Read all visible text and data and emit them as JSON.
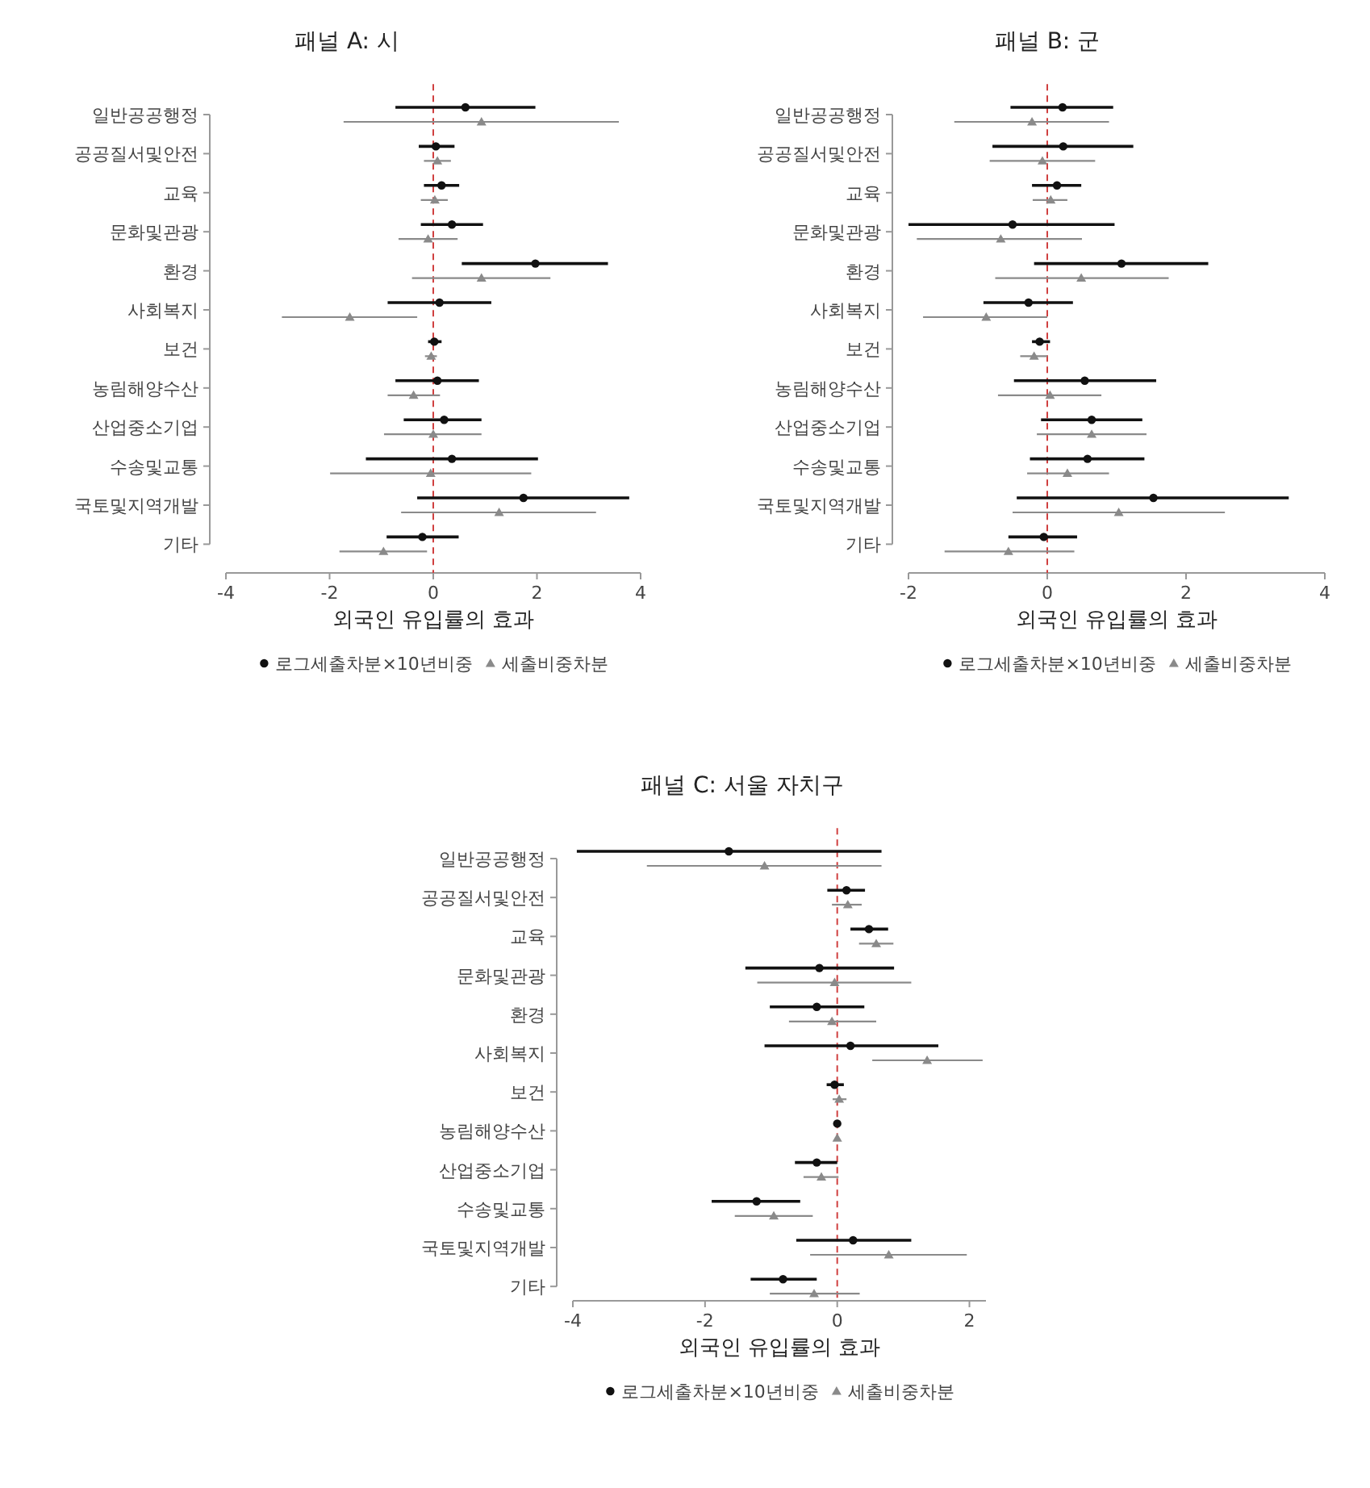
{
  "chart_data": [
    {
      "type": "scatter",
      "title": "패널 A: 시",
      "xlabel": "외국인 유입률의 효과",
      "orientation": "horizontal",
      "categories": [
        "일반공공행정",
        "공공질서및안전",
        "교육",
        "문화및관광",
        "환경",
        "사회복지",
        "보건",
        "농림해양수산",
        "산업중소기업",
        "수송및교통",
        "국토및지역개발",
        "기타"
      ],
      "xlim": [
        -4,
        4
      ],
      "xticks": [
        -4,
        -2,
        0,
        2,
        4
      ],
      "legend": "bottom",
      "ref_lines": [
        {
          "axis": "x",
          "value": 0,
          "color": "#d04040",
          "line_style": "dashed"
        }
      ],
      "series": [
        {
          "name": "로그세출차분×10년비중",
          "color": "#111111",
          "marker": "circle",
          "values": [
            0.62,
            0.05,
            0.16,
            0.36,
            1.97,
            0.12,
            0.02,
            0.08,
            0.21,
            0.36,
            1.74,
            -0.21
          ],
          "errors": [
            [
              -0.73,
              1.97
            ],
            [
              -0.28,
              0.41
            ],
            [
              -0.18,
              0.5
            ],
            [
              -0.24,
              0.96
            ],
            [
              0.55,
              3.37
            ],
            [
              -0.88,
              1.12
            ],
            [
              -0.1,
              0.16
            ],
            [
              -0.73,
              0.88
            ],
            [
              -0.57,
              0.93
            ],
            [
              -1.3,
              2.02
            ],
            [
              -0.31,
              3.78
            ],
            [
              -0.9,
              0.49
            ]
          ]
        },
        {
          "name": "세출비중차분",
          "color": "#8a8a8a",
          "marker": "triangle",
          "values": [
            0.93,
            0.08,
            0.03,
            -0.1,
            0.93,
            -1.61,
            -0.04,
            -0.38,
            0,
            -0.05,
            1.27,
            -0.96
          ],
          "errors": [
            [
              -1.73,
              3.58
            ],
            [
              -0.18,
              0.34
            ],
            [
              -0.24,
              0.28
            ],
            [
              -0.67,
              0.47
            ],
            [
              -0.41,
              2.26
            ],
            [
              -2.92,
              -0.31
            ],
            [
              -0.16,
              0.07
            ],
            [
              -0.88,
              0.13
            ],
            [
              -0.95,
              0.93
            ],
            [
              -1.99,
              1.89
            ],
            [
              -0.62,
              3.14
            ],
            [
              -1.81,
              -0.12
            ]
          ]
        }
      ]
    },
    {
      "type": "scatter",
      "title": "패널 B: 군",
      "xlabel": "외국인 유입률의 효과",
      "orientation": "horizontal",
      "categories": [
        "일반공공행정",
        "공공질서및안전",
        "교육",
        "문화및관광",
        "환경",
        "사회복지",
        "보건",
        "농림해양수산",
        "산업중소기업",
        "수송및교통",
        "국토및지역개발",
        "기타"
      ],
      "xlim": [
        -2,
        4
      ],
      "xticks": [
        -2,
        0,
        2,
        4
      ],
      "legend": "bottom",
      "ref_lines": [
        {
          "axis": "x",
          "value": 0,
          "color": "#d04040",
          "line_style": "dashed"
        }
      ],
      "series": [
        {
          "name": "로그세출차분×10년비중",
          "color": "#111111",
          "marker": "circle",
          "values": [
            0.22,
            0.23,
            0.14,
            -0.5,
            1.07,
            -0.27,
            -0.11,
            0.54,
            0.64,
            0.58,
            1.53,
            -0.05
          ],
          "errors": [
            [
              -0.53,
              0.95
            ],
            [
              -0.79,
              1.24
            ],
            [
              -0.22,
              0.49
            ],
            [
              -2.0,
              0.97
            ],
            [
              -0.19,
              2.32
            ],
            [
              -0.92,
              0.37
            ],
            [
              -0.22,
              0.04
            ],
            [
              -0.48,
              1.57
            ],
            [
              -0.09,
              1.37
            ],
            [
              -0.25,
              1.4
            ],
            [
              -0.44,
              3.48
            ],
            [
              -0.56,
              0.43
            ]
          ]
        },
        {
          "name": "세출비중차분",
          "color": "#8a8a8a",
          "marker": "triangle",
          "values": [
            -0.22,
            -0.07,
            0.05,
            -0.67,
            0.49,
            -0.88,
            -0.19,
            0.04,
            0.64,
            0.29,
            1.03,
            -0.56
          ],
          "errors": [
            [
              -1.34,
              0.89
            ],
            [
              -0.83,
              0.69
            ],
            [
              -0.21,
              0.29
            ],
            [
              -1.88,
              0.5
            ],
            [
              -0.75,
              1.75
            ],
            [
              -1.79,
              0
            ],
            [
              -0.39,
              0
            ],
            [
              -0.71,
              0.78
            ],
            [
              -0.15,
              1.43
            ],
            [
              -0.29,
              0.89
            ],
            [
              -0.5,
              2.56
            ],
            [
              -1.48,
              0.39
            ]
          ]
        }
      ]
    },
    {
      "type": "scatter",
      "title": "패널 C: 서울 자치구",
      "xlabel": "외국인 유입률의 효과",
      "orientation": "horizontal",
      "categories": [
        "일반공공행정",
        "공공질서및안전",
        "교육",
        "문화및관광",
        "환경",
        "사회복지",
        "보건",
        "농림해양수산",
        "산업중소기업",
        "수송및교통",
        "국토및지역개발",
        "기타"
      ],
      "xlim": [
        -4,
        2.25
      ],
      "xticks": [
        -4,
        -2,
        0,
        2
      ],
      "legend": "bottom",
      "ref_lines": [
        {
          "axis": "x",
          "value": 0,
          "color": "#d04040",
          "line_style": "dashed"
        }
      ],
      "series": [
        {
          "name": "로그세출차분×10년비중",
          "color": "#111111",
          "marker": "circle",
          "values": [
            -1.64,
            0.14,
            0.48,
            -0.27,
            -0.31,
            0.2,
            -0.04,
            0,
            -0.31,
            -1.22,
            0.24,
            -0.82
          ],
          "errors": [
            [
              -3.94,
              0.67
            ],
            [
              -0.15,
              0.42
            ],
            [
              0.2,
              0.77
            ],
            [
              -1.39,
              0.86
            ],
            [
              -1.02,
              0.41
            ],
            [
              -1.1,
              1.53
            ],
            [
              -0.16,
              0.1
            ],
            [
              -0.02,
              0.02
            ],
            [
              -0.64,
              0
            ],
            [
              -1.9,
              -0.56
            ],
            [
              -0.62,
              1.12
            ],
            [
              -1.31,
              -0.31
            ]
          ]
        },
        {
          "name": "세출비중차분",
          "color": "#8a8a8a",
          "marker": "triangle",
          "values": [
            -1.1,
            0.16,
            0.59,
            -0.04,
            -0.08,
            1.36,
            0.03,
            0,
            -0.24,
            -0.96,
            0.78,
            -0.35
          ],
          "errors": [
            [
              -2.88,
              0.67
            ],
            [
              -0.08,
              0.37
            ],
            [
              0.33,
              0.85
            ],
            [
              -1.21,
              1.12
            ],
            [
              -0.73,
              0.59
            ],
            [
              0.53,
              2.2
            ],
            [
              -0.07,
              0.14
            ],
            [
              -0.02,
              0.02
            ],
            [
              -0.51,
              0.02
            ],
            [
              -1.55,
              -0.37
            ],
            [
              -0.41,
              1.96
            ],
            [
              -1.02,
              0.34
            ]
          ]
        }
      ]
    }
  ]
}
